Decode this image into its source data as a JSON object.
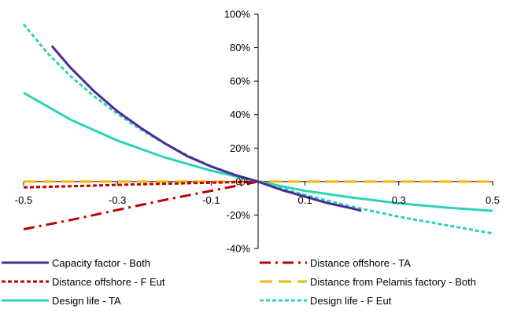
{
  "chart_data": {
    "type": "line",
    "title": "",
    "xlabel": "",
    "ylabel": "",
    "xlim": [
      -0.5,
      0.5
    ],
    "ylim": [
      -0.4,
      1.0
    ],
    "x_ticks": [
      {
        "value": -0.5,
        "label": "-0.5"
      },
      {
        "value": -0.3,
        "label": "-0.3"
      },
      {
        "value": -0.1,
        "label": "-0.1"
      },
      {
        "value": 0.1,
        "label": "0.1"
      },
      {
        "value": 0.3,
        "label": "0.3"
      },
      {
        "value": 0.5,
        "label": "0.5"
      }
    ],
    "y_ticks": [
      {
        "value": 1.0,
        "label": "100%"
      },
      {
        "value": 0.8,
        "label": "80%"
      },
      {
        "value": 0.6,
        "label": "60%"
      },
      {
        "value": 0.4,
        "label": "40%"
      },
      {
        "value": 0.2,
        "label": "20%"
      },
      {
        "value": 0.0,
        "label": "0%"
      },
      {
        "value": -0.2,
        "label": "-20%"
      },
      {
        "value": -0.4,
        "label": "-40%"
      }
    ],
    "grid": false,
    "legend_position": "bottom",
    "series": [
      {
        "name": "Capacity factor - Both",
        "color": "#4b2a9a",
        "dash": "solid",
        "points": [
          [
            -0.44,
            0.81
          ],
          [
            -0.4,
            0.68
          ],
          [
            -0.35,
            0.54
          ],
          [
            -0.3,
            0.42
          ],
          [
            -0.25,
            0.32
          ],
          [
            -0.2,
            0.23
          ],
          [
            -0.15,
            0.15
          ],
          [
            -0.1,
            0.09
          ],
          [
            -0.05,
            0.04
          ],
          [
            0,
            0
          ],
          [
            0.05,
            -0.05
          ],
          [
            0.1,
            -0.09
          ],
          [
            0.15,
            -0.13
          ],
          [
            0.2,
            -0.16
          ],
          [
            0.22,
            -0.175
          ]
        ]
      },
      {
        "name": "Distance offshore - TA",
        "color": "#c00000",
        "dash": "dashdot",
        "points": [
          [
            -0.5,
            -0.285
          ],
          [
            -0.4,
            -0.23
          ],
          [
            -0.3,
            -0.17
          ],
          [
            -0.2,
            -0.11
          ],
          [
            -0.1,
            -0.055
          ],
          [
            0,
            0
          ]
        ]
      },
      {
        "name": "Distance offshore - F Eut",
        "color": "#c00000",
        "dash": "shortdash",
        "points": [
          [
            -0.5,
            -0.035
          ],
          [
            -0.4,
            -0.028
          ],
          [
            -0.3,
            -0.02
          ],
          [
            -0.2,
            -0.013
          ],
          [
            -0.1,
            -0.007
          ],
          [
            0,
            0
          ]
        ]
      },
      {
        "name": "Distance from Pelamis factory - Both",
        "color": "#f2b700",
        "dash": "longdash",
        "points": [
          [
            -0.5,
            0.0
          ],
          [
            0.5,
            0.0
          ]
        ]
      },
      {
        "name": "Design life - TA",
        "color": "#2dd4b4",
        "dash": "solid",
        "points": [
          [
            -0.5,
            0.53
          ],
          [
            -0.4,
            0.37
          ],
          [
            -0.3,
            0.245
          ],
          [
            -0.2,
            0.145
          ],
          [
            -0.1,
            0.065
          ],
          [
            0,
            0
          ],
          [
            0.1,
            -0.055
          ],
          [
            0.2,
            -0.095
          ],
          [
            0.3,
            -0.13
          ],
          [
            0.4,
            -0.155
          ],
          [
            0.5,
            -0.175
          ]
        ]
      },
      {
        "name": "Design life - F Eut",
        "color": "#2dd4b4",
        "dash": "shortdash",
        "points": [
          [
            -0.5,
            0.94
          ],
          [
            -0.45,
            0.77
          ],
          [
            -0.4,
            0.63
          ],
          [
            -0.35,
            0.51
          ],
          [
            -0.3,
            0.405
          ],
          [
            -0.25,
            0.31
          ],
          [
            -0.2,
            0.23
          ],
          [
            -0.15,
            0.155
          ],
          [
            -0.1,
            0.09
          ],
          [
            -0.05,
            0.04
          ],
          [
            0,
            0
          ],
          [
            0.1,
            -0.08
          ],
          [
            0.2,
            -0.15
          ],
          [
            0.3,
            -0.21
          ],
          [
            0.4,
            -0.26
          ],
          [
            0.5,
            -0.31
          ]
        ]
      }
    ]
  }
}
